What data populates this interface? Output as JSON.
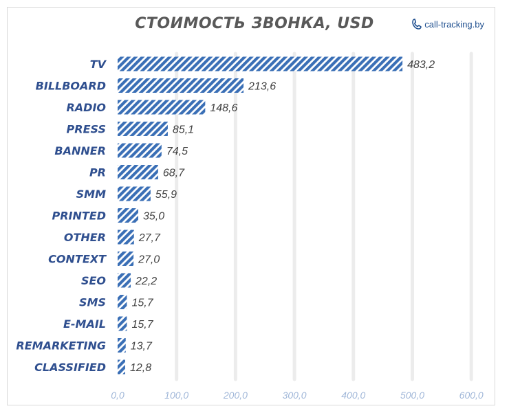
{
  "brand": {
    "text": "call-tracking.by",
    "icon": "phone-handset-icon"
  },
  "colors": {
    "bar": "#3a6fb6",
    "label": "#2f4f8f",
    "value": "#404040",
    "tick": "#9fb6d8",
    "grid": "#ececec"
  },
  "chart_data": {
    "type": "bar",
    "orientation": "horizontal",
    "title": "СТОИМОСТЬ ЗВОНКА, USD",
    "categories": [
      "TV",
      "BILLBOARD",
      "RADIO",
      "PRESS",
      "BANNER",
      "PR",
      "SMM",
      "PRINTED",
      "OTHER",
      "CONTEXT",
      "SEO",
      "SMS",
      "E-MAIL",
      "REMARKETING",
      "CLASSIFIED"
    ],
    "values": [
      483.2,
      213.6,
      148.6,
      85.1,
      74.5,
      68.7,
      55.9,
      35.0,
      27.7,
      27.0,
      22.2,
      15.7,
      15.7,
      13.7,
      12.8
    ],
    "value_labels": [
      "483,2",
      "213,6",
      "148,6",
      "85,1",
      "74,5",
      "68,7",
      "55,9",
      "35,0",
      "27,7",
      "27,0",
      "22,2",
      "15,7",
      "15,7",
      "13,7",
      "12,8"
    ],
    "xlim": [
      0,
      600
    ],
    "xticks": [
      0,
      100,
      200,
      300,
      400,
      500,
      600
    ],
    "xtick_labels": [
      "0,0",
      "100,0",
      "200,0",
      "300,0",
      "400,0",
      "500,0",
      "600,0"
    ],
    "fill": "hatched",
    "grid": true,
    "legend": false
  }
}
